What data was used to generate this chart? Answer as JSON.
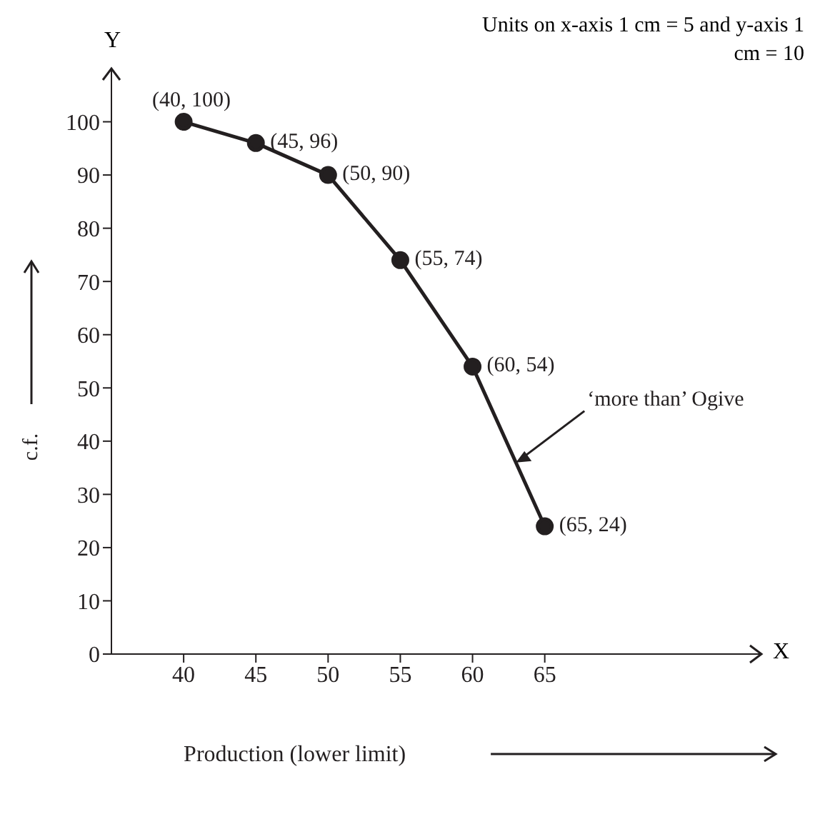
{
  "chart_data": {
    "type": "line",
    "xlabel": "Production (lower limit)",
    "ylabel": "c.f.",
    "x": [
      40,
      45,
      50,
      55,
      60,
      65
    ],
    "series": [
      {
        "color": "#231f20",
        "values": [
          100,
          96,
          90,
          74,
          54,
          24
        ],
        "value_labels": [
          "(40, 100)",
          "(45, 96)",
          "(50, 90)",
          "(55, 74)",
          "(60, 54)",
          "(65, 24)"
        ]
      }
    ],
    "xlim": [
      35,
      80
    ],
    "xticks": [
      40,
      45,
      50,
      55,
      60,
      65
    ],
    "ylim": [
      0,
      110
    ],
    "yticks": [
      0,
      10,
      20,
      30,
      40,
      50,
      60,
      70,
      80,
      90,
      100
    ],
    "grid": false,
    "legend": false,
    "marker": "circle",
    "line_style": "solid",
    "annotations": [
      "Units on x-axis 1 cm = 5 and y-axis 1 cm = 10",
      {
        "text": "‘more than’ Ogive",
        "x": 63,
        "y": 36
      },
      "X",
      "Y"
    ]
  }
}
